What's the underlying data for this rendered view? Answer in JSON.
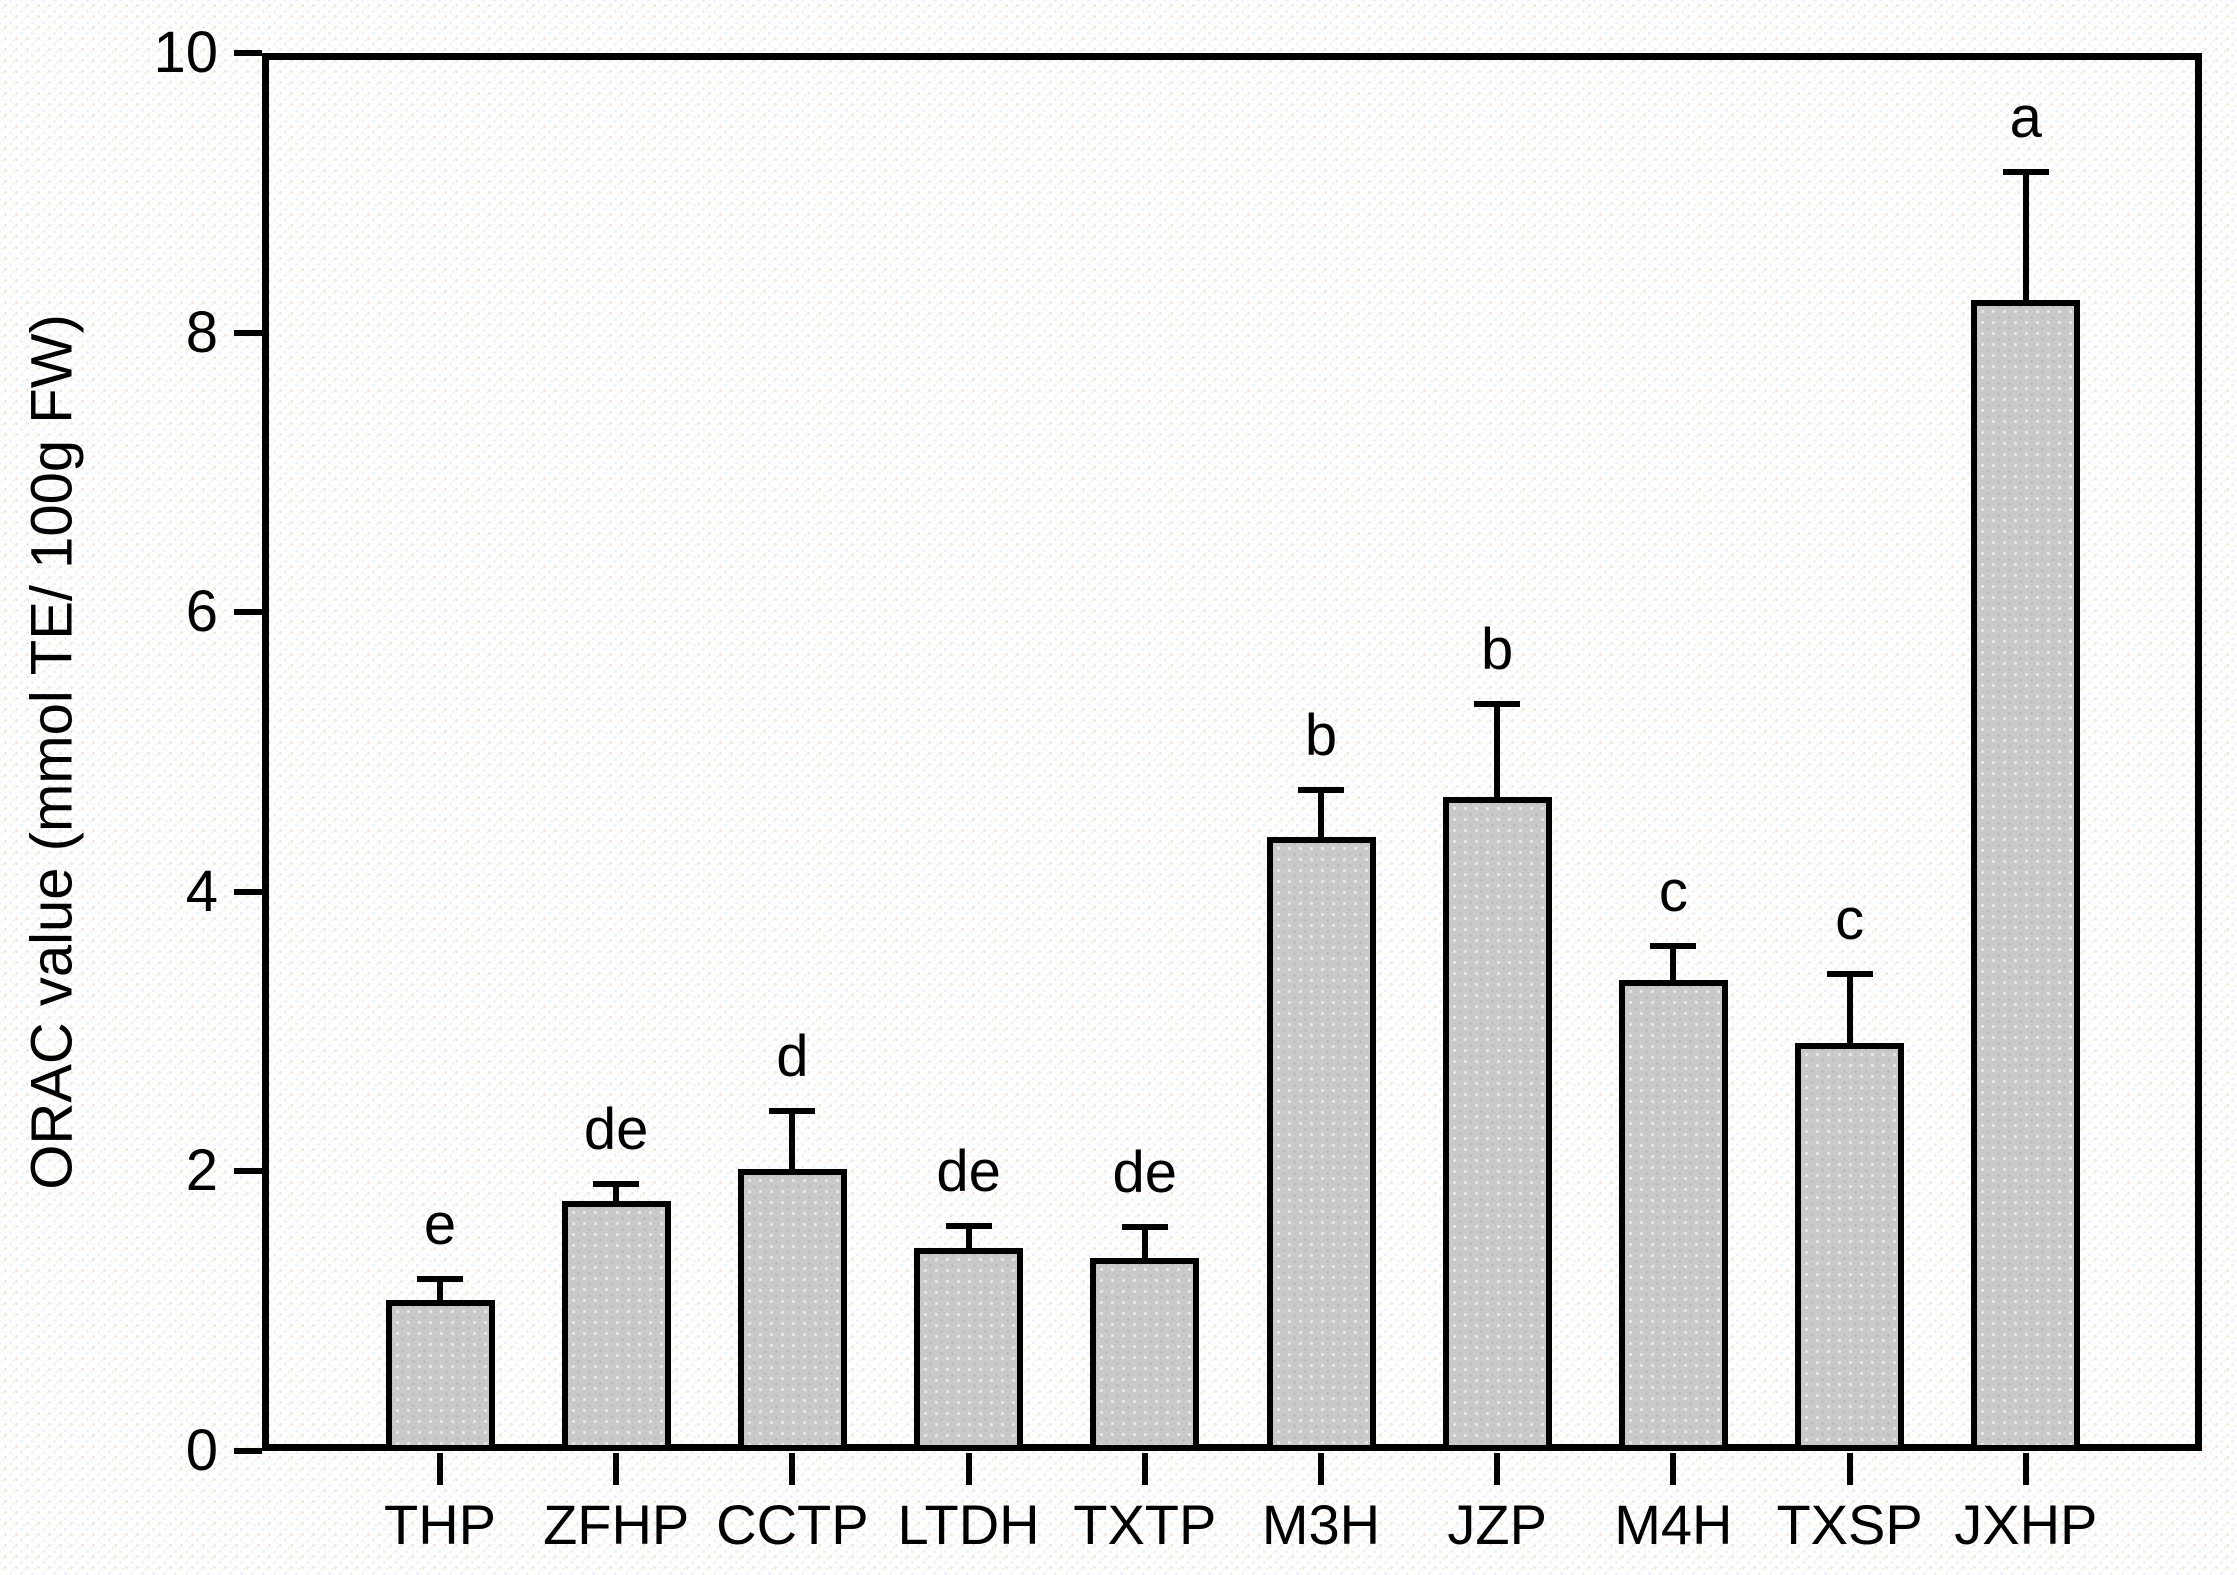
{
  "chart_data": {
    "type": "bar",
    "title": "",
    "xlabel": "",
    "ylabel": "ORAC value (mmol TE/ 100g FW)",
    "ylim": [
      0,
      10
    ],
    "yticks": [
      0,
      2,
      4,
      6,
      8,
      10
    ],
    "grid": false,
    "legend": null,
    "categories": [
      "THP",
      "ZFHP",
      "CCTP",
      "LTDH",
      "TXTP",
      "M3H",
      "JZP",
      "M4H",
      "TXSP",
      "JXHP"
    ],
    "series": [
      {
        "name": "ORAC value",
        "values": [
          1.08,
          1.79,
          2.02,
          1.45,
          1.38,
          4.39,
          4.68,
          3.37,
          2.92,
          8.23
        ],
        "errors": [
          0.15,
          0.12,
          0.41,
          0.16,
          0.22,
          0.34,
          0.66,
          0.24,
          0.49,
          0.92
        ],
        "sig_letters": [
          "e",
          "de",
          "d",
          "de",
          "de",
          "b",
          "b",
          "c",
          "c",
          "a"
        ]
      }
    ],
    "colors": {
      "bar_fill": "#c9c9c9",
      "bar_border": "#000000",
      "axis": "#000000",
      "text": "#000000",
      "background": "#fefefe"
    }
  }
}
